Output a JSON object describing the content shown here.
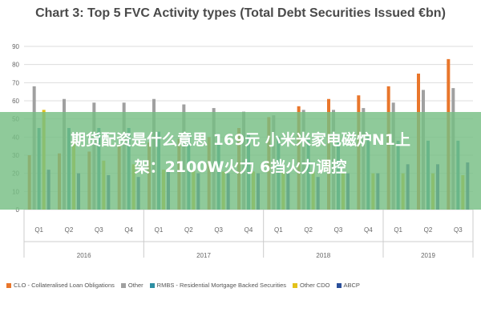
{
  "chart_data": {
    "type": "bar",
    "title": "Chart 3: Top 5 FVC Activity types (Total Debt Securities Issued €bn)",
    "ylim": [
      0,
      90
    ],
    "yticks": [
      0,
      10,
      20,
      30,
      40,
      50,
      60,
      70,
      80,
      90
    ],
    "grid": true,
    "legend_position": "bottom",
    "categories": [
      "Q1",
      "Q2",
      "Q3",
      "Q4",
      "Q1",
      "Q2",
      "Q3",
      "Q4",
      "Q1",
      "Q2",
      "Q3",
      "Q4",
      "Q1",
      "Q2",
      "Q3"
    ],
    "groups": [
      {
        "label": "2016",
        "span": 4
      },
      {
        "label": "2017",
        "span": 4
      },
      {
        "label": "2018",
        "span": 4
      },
      {
        "label": "2019",
        "span": 3
      }
    ],
    "series": [
      {
        "name": "CLO - Collateralised Loan Obligations",
        "color": "#e9762b",
        "values": [
          30,
          31,
          32,
          35,
          37,
          39,
          40,
          45,
          51,
          57,
          61,
          63,
          68,
          75,
          83
        ]
      },
      {
        "name": "Other",
        "color": "#a0a0a0",
        "values": [
          68,
          61,
          59,
          59,
          61,
          58,
          56,
          54,
          52,
          55,
          55,
          56,
          59,
          66,
          67
        ]
      },
      {
        "name": "RMBS - Residential Mortgage Backed Securities",
        "color": "#2e8fa3",
        "values": [
          45,
          45,
          45,
          45,
          43,
          42,
          42,
          42,
          40,
          39,
          38,
          40,
          38,
          38,
          38
        ]
      },
      {
        "name": "Other CDO",
        "color": "#e3c21b",
        "values": [
          55,
          38,
          27,
          25,
          22,
          22,
          21,
          21,
          21,
          21,
          20,
          20,
          20,
          20,
          19
        ]
      },
      {
        "name": "ABCP",
        "color": "#2a4f9a",
        "values": [
          22,
          20,
          19,
          18,
          22,
          20,
          20,
          20,
          20,
          18,
          20,
          20,
          25,
          25,
          26
        ]
      }
    ]
  },
  "overlay": {
    "line1": "期货配资是什么意思 169元 小米米家电磁炉N1上",
    "line2": "架：2100W火力 6挡火力调控"
  }
}
